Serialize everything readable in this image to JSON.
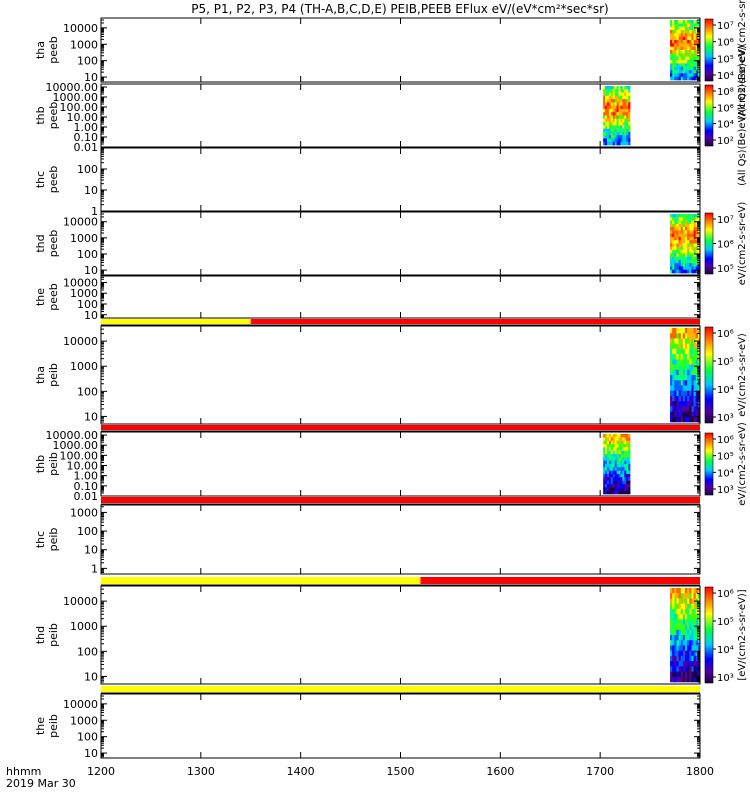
{
  "title": "P5, P1, P2, P3, P4 (TH-A,B,C,D,E) PEIB,PEEB EFlux eV/(eV*cm²*sec*sr)",
  "x_axis": {
    "label_line1": "hhmm",
    "label_line2": "2019 Mar 30",
    "range": [
      1200,
      1800
    ],
    "ticks": [
      "1200",
      "1300",
      "1400",
      "1500",
      "1600",
      "1700",
      "1800"
    ]
  },
  "colors": {
    "good_quality": "#ff0000",
    "flagged_quality": "#ffff00",
    "axis": "#000000"
  },
  "chart_data": {
    "type": "heatmap",
    "x_units": "hhmm",
    "panels": [
      {
        "probe_label": "tha",
        "instrument_label": "peeb",
        "y_scale": "log",
        "ylim": [
          5,
          40000
        ],
        "y_ticks": [
          "10",
          "100",
          "1000",
          "10000"
        ],
        "data_intervals": [
          [
            1770,
            1800
          ]
        ],
        "colorbar": {
          "ticks": [
            "10⁴",
            "10⁵",
            "10⁶",
            "10⁷"
          ],
          "label": "(All Qs)(Be)eV/(cm2-s-sr-eV)"
        }
      },
      {
        "probe_label": "thb",
        "instrument_label": "peeb",
        "y_scale": "log",
        "ylim": [
          0.01,
          20000
        ],
        "y_ticks": [
          "0.01",
          "0.10",
          "1.00",
          "10.00",
          "100.00",
          "1000.00",
          "10000.00"
        ],
        "data_intervals": [
          [
            1703,
            1730
          ]
        ],
        "colorbar": {
          "ticks": [
            "10²",
            "10⁴",
            "10⁶",
            "10⁸"
          ],
          "label": "(All Qs)(Be)eV/(cm2-s-sr-eV)"
        }
      },
      {
        "probe_label": "thc",
        "instrument_label": "peeb",
        "y_scale": "log",
        "ylim": [
          1,
          1000
        ],
        "y_ticks": [
          "1",
          "10",
          "100"
        ],
        "data_intervals": [],
        "colorbar": null
      },
      {
        "probe_label": "thd",
        "instrument_label": "peeb",
        "y_scale": "log",
        "ylim": [
          5,
          40000
        ],
        "y_ticks": [
          "10",
          "100",
          "1000",
          "10000"
        ],
        "data_intervals": [
          [
            1770,
            1800
          ]
        ],
        "colorbar": {
          "ticks": [
            "10⁵",
            "10⁶",
            "10⁷"
          ],
          "label": "eV/(cm2-s-sr-eV)"
        }
      },
      {
        "probe_label": "the",
        "instrument_label": "peeb",
        "y_scale": "log",
        "ylim": [
          5,
          40000
        ],
        "y_ticks": [
          "10",
          "100",
          "1000",
          "10000"
        ],
        "data_intervals": [],
        "colorbar": null
      },
      {
        "probe_label": "tha",
        "instrument_label": "peib",
        "y_scale": "log",
        "ylim": [
          5,
          40000
        ],
        "y_ticks": [
          "10",
          "100",
          "1000",
          "10000"
        ],
        "data_intervals": [
          [
            1770,
            1800
          ]
        ],
        "quality_bar": [
          {
            "from": 1200,
            "to": 1350,
            "flag": "flagged"
          },
          {
            "from": 1350,
            "to": 1800,
            "flag": "good"
          }
        ],
        "colorbar": {
          "ticks": [
            "10³",
            "10⁴",
            "10⁵",
            "10⁶"
          ],
          "label": "eV/(cm2-s-sr-eV)"
        }
      },
      {
        "probe_label": "thb",
        "instrument_label": "peib",
        "y_scale": "log",
        "ylim": [
          0.01,
          20000
        ],
        "y_ticks": [
          "0.01",
          "0.10",
          "1.00",
          "10.00",
          "100.00",
          "1000.00",
          "10000.00"
        ],
        "data_intervals": [
          [
            1703,
            1730
          ]
        ],
        "quality_bar": [
          {
            "from": 1200,
            "to": 1800,
            "flag": "good"
          }
        ],
        "colorbar": {
          "ticks": [
            "10³",
            "10⁴",
            "10⁵",
            "10⁶"
          ],
          "label": "eV/(cm2-s-sr-eV)"
        }
      },
      {
        "probe_label": "thc",
        "instrument_label": "peib",
        "y_scale": "log",
        "ylim": [
          0.5,
          2500
        ],
        "y_ticks": [
          "1",
          "10",
          "100",
          "1000"
        ],
        "data_intervals": [],
        "quality_bar": [
          {
            "from": 1200,
            "to": 1800,
            "flag": "good"
          }
        ],
        "colorbar": null
      },
      {
        "probe_label": "thd",
        "instrument_label": "peib",
        "y_scale": "log",
        "ylim": [
          5,
          40000
        ],
        "y_ticks": [
          "10",
          "100",
          "1000",
          "10000"
        ],
        "data_intervals": [
          [
            1770,
            1800
          ]
        ],
        "quality_bar": [
          {
            "from": 1200,
            "to": 1520,
            "flag": "flagged"
          },
          {
            "from": 1520,
            "to": 1800,
            "flag": "good"
          }
        ],
        "colorbar": {
          "ticks": [
            "10³",
            "10⁴",
            "10⁵",
            "10⁶"
          ],
          "label": "[eV/(cm2-s-sr-eV)]"
        }
      },
      {
        "probe_label": "the",
        "instrument_label": "peib",
        "y_scale": "log",
        "ylim": [
          5,
          40000
        ],
        "y_ticks": [
          "10",
          "100",
          "1000",
          "10000"
        ],
        "data_intervals": [],
        "quality_bar": [
          {
            "from": 1200,
            "to": 1800,
            "flag": "flagged"
          }
        ],
        "colorbar": null
      }
    ]
  }
}
